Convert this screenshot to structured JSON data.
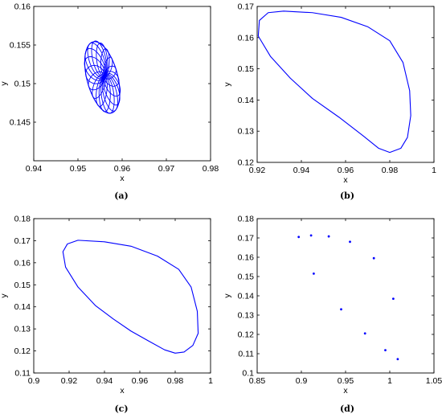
{
  "chart_data": [
    {
      "panel": "a",
      "caption": "(a)",
      "type": "line",
      "xlabel": "x",
      "ylabel": "y",
      "xlim": [
        0.94,
        0.98
      ],
      "ylim": [
        0.14,
        0.16
      ],
      "xticks": [
        "0.94",
        "0.95",
        "0.96",
        "0.97",
        "0.98"
      ],
      "yticks": [
        "0.145",
        "0.15",
        "0.155",
        "0.16"
      ],
      "curve_family": {
        "description_points": "nested closed orbits (ellipses) sharing a common center and touching outer boundary",
        "center": [
          0.956,
          0.151
        ],
        "outer_ellipse": {
          "center": [
            0.9555,
            0.1508
          ],
          "semi_major": 0.0052,
          "semi_minor": 0.0032,
          "tilt_deg": -55
        },
        "count": 18
      }
    },
    {
      "panel": "b",
      "caption": "(b)",
      "type": "line",
      "xlabel": "x",
      "ylabel": "y",
      "xlim": [
        0.92,
        1.0
      ],
      "ylim": [
        0.12,
        0.17
      ],
      "xticks": [
        "0.92",
        "0.94",
        "0.96",
        "0.98",
        "1"
      ],
      "yticks": [
        "0.12",
        "0.13",
        "0.14",
        "0.15",
        "0.16",
        "0.17"
      ],
      "points": [
        [
          0.932,
          0.1685
        ],
        [
          0.945,
          0.168
        ],
        [
          0.958,
          0.1665
        ],
        [
          0.97,
          0.1635
        ],
        [
          0.98,
          0.159
        ],
        [
          0.986,
          0.152
        ],
        [
          0.989,
          0.143
        ],
        [
          0.9895,
          0.135
        ],
        [
          0.988,
          0.128
        ],
        [
          0.985,
          0.1245
        ],
        [
          0.98,
          0.1232
        ],
        [
          0.975,
          0.1245
        ],
        [
          0.968,
          0.1285
        ],
        [
          0.957,
          0.1345
        ],
        [
          0.945,
          0.1405
        ],
        [
          0.935,
          0.147
        ],
        [
          0.926,
          0.154
        ],
        [
          0.9205,
          0.1605
        ],
        [
          0.921,
          0.1655
        ],
        [
          0.925,
          0.168
        ],
        [
          0.932,
          0.1685
        ]
      ]
    },
    {
      "panel": "c",
      "caption": "(c)",
      "type": "line",
      "xlabel": "x",
      "ylabel": "y",
      "xlim": [
        0.9,
        1.0
      ],
      "ylim": [
        0.11,
        0.18
      ],
      "xticks": [
        "0.9",
        "0.92",
        "0.94",
        "0.96",
        "0.98",
        "1"
      ],
      "yticks": [
        "0.11",
        "0.12",
        "0.13",
        "0.14",
        "0.15",
        "0.16",
        "0.17",
        "0.18"
      ],
      "points": [
        [
          0.925,
          0.1702
        ],
        [
          0.94,
          0.1695
        ],
        [
          0.955,
          0.1675
        ],
        [
          0.97,
          0.163
        ],
        [
          0.982,
          0.157
        ],
        [
          0.989,
          0.149
        ],
        [
          0.9925,
          0.138
        ],
        [
          0.993,
          0.128
        ],
        [
          0.99,
          0.1225
        ],
        [
          0.985,
          0.1195
        ],
        [
          0.98,
          0.119
        ],
        [
          0.974,
          0.1205
        ],
        [
          0.965,
          0.1245
        ],
        [
          0.955,
          0.129
        ],
        [
          0.945,
          0.1345
        ],
        [
          0.935,
          0.1405
        ],
        [
          0.925,
          0.149
        ],
        [
          0.918,
          0.158
        ],
        [
          0.9165,
          0.165
        ],
        [
          0.919,
          0.1685
        ],
        [
          0.925,
          0.1702
        ]
      ]
    },
    {
      "panel": "d",
      "caption": "(d)",
      "type": "scatter",
      "xlabel": "x",
      "ylabel": "y",
      "xlim": [
        0.85,
        1.05
      ],
      "ylim": [
        0.1,
        0.18
      ],
      "xticks": [
        "0.85",
        "0.9",
        "0.95",
        "1",
        "1.05"
      ],
      "yticks": [
        "0.1",
        "0.11",
        "0.12",
        "0.13",
        "0.14",
        "0.15",
        "0.16",
        "0.17",
        "0.18"
      ],
      "points": [
        [
          0.897,
          0.1705
        ],
        [
          0.911,
          0.1713
        ],
        [
          0.931,
          0.1708
        ],
        [
          0.955,
          0.168
        ],
        [
          0.982,
          0.1595
        ],
        [
          1.004,
          0.1385
        ],
        [
          1.009,
          0.1072
        ],
        [
          0.995,
          0.1118
        ],
        [
          0.972,
          0.1205
        ],
        [
          0.945,
          0.133
        ],
        [
          0.914,
          0.1515
        ]
      ]
    }
  ],
  "colors": {
    "series": "#0000ff",
    "axes": "#000000"
  }
}
